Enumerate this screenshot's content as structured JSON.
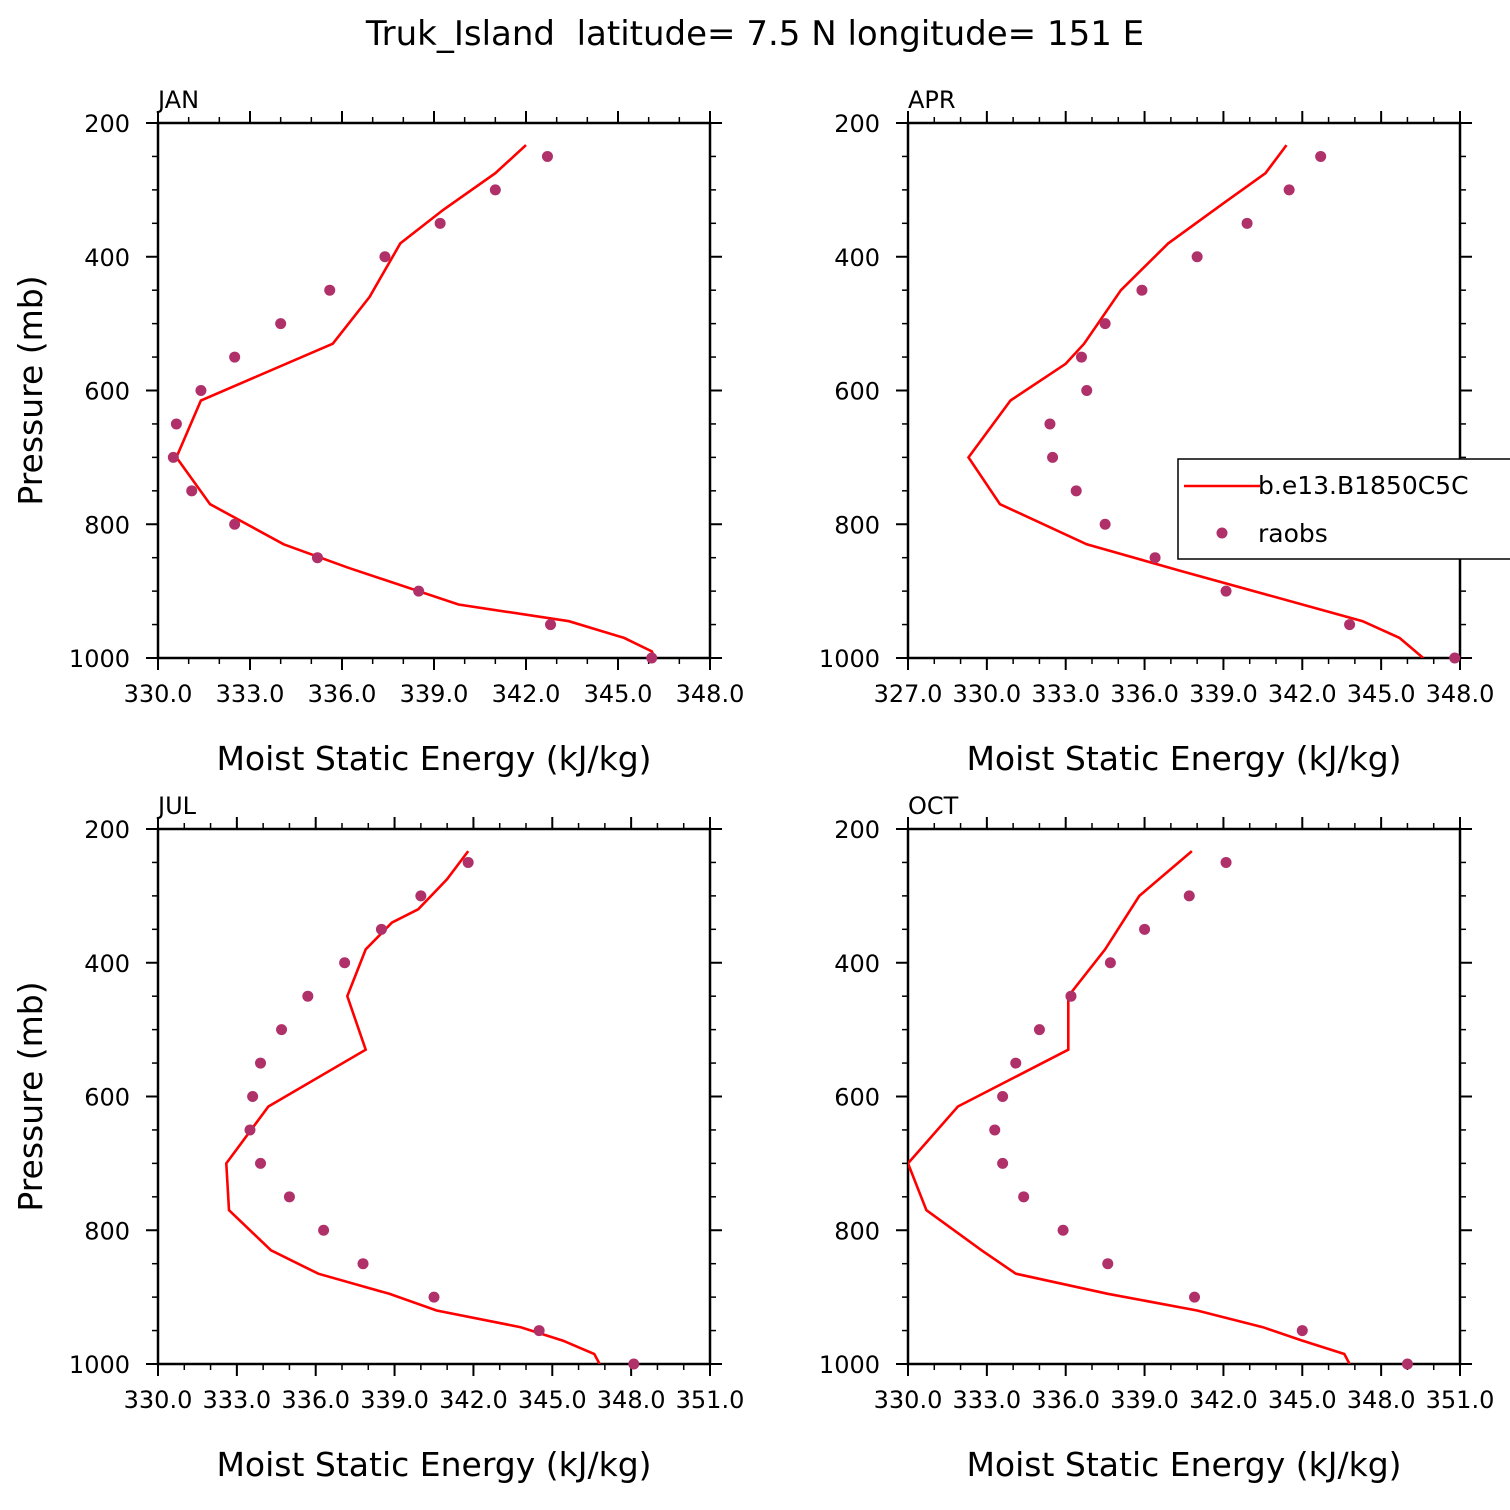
{
  "figure_title": "Truk_Island  latitude= 7.5 N longitude= 151 E",
  "colors": {
    "model_line": "#ff0000",
    "obs_marker": "#b0306a",
    "axes": "#000000",
    "background": "#ffffff"
  },
  "legend": {
    "model_label": "b.e13.B1850C5C",
    "obs_label": "raobs"
  },
  "chart_data": [
    {
      "type": "line",
      "panel_label": "JAN",
      "xlabel": "Moist Static Energy (kJ/kg)",
      "ylabel": "Pressure (mb)",
      "xlim": [
        330.0,
        348.0
      ],
      "xticks": [
        330.0,
        333.0,
        336.0,
        339.0,
        342.0,
        345.0,
        348.0
      ],
      "x_tick_labels": [
        "330.0",
        "333.0",
        "336.0",
        "339.0",
        "342.0",
        "345.0",
        "348.0"
      ],
      "ylim": [
        1000,
        200
      ],
      "yticks": [
        200,
        400,
        600,
        800,
        1000
      ],
      "y_tick_labels": [
        "200",
        "400",
        "600",
        "800",
        "1000"
      ],
      "grid": false,
      "legend_visible": false,
      "series": [
        {
          "name": "b.e13.B1850C5C",
          "kind": "line",
          "x": [
            342.0,
            341.0,
            339.3,
            337.9,
            336.9,
            335.7,
            331.4,
            330.6,
            331.7,
            334.1,
            336.2,
            339.8,
            343.4,
            345.2,
            346.1,
            346.2
          ],
          "y": [
            233,
            275,
            330,
            380,
            460,
            530,
            615,
            700,
            770,
            830,
            865,
            920,
            945,
            970,
            990,
            1000
          ]
        },
        {
          "name": "raobs",
          "kind": "scatter",
          "x": [
            342.7,
            341.0,
            339.2,
            337.4,
            335.6,
            334.0,
            332.5,
            331.4,
            330.6,
            330.5,
            331.1,
            332.5,
            335.2,
            338.5,
            342.8,
            346.1
          ],
          "y": [
            250,
            300,
            350,
            400,
            450,
            500,
            550,
            600,
            650,
            700,
            750,
            800,
            850,
            900,
            950,
            1000
          ]
        }
      ]
    },
    {
      "type": "line",
      "panel_label": "APR",
      "xlabel": "Moist Static Energy (kJ/kg)",
      "ylabel": "",
      "xlim": [
        327.0,
        348.0
      ],
      "xticks": [
        327.0,
        330.0,
        333.0,
        336.0,
        339.0,
        342.0,
        345.0,
        348.0
      ],
      "x_tick_labels": [
        "327.0",
        "330.0",
        "333.0",
        "336.0",
        "339.0",
        "342.0",
        "345.0",
        "348.0"
      ],
      "ylim": [
        1000,
        200
      ],
      "yticks": [
        200,
        400,
        600,
        800,
        1000
      ],
      "y_tick_labels": [
        "200",
        "400",
        "600",
        "800",
        "1000"
      ],
      "grid": false,
      "legend_visible": true,
      "legend_position": "right",
      "series": [
        {
          "name": "b.e13.B1850C5C",
          "kind": "line",
          "x": [
            341.4,
            340.6,
            339.0,
            336.9,
            335.1,
            333.7,
            333.0,
            330.9,
            329.3,
            330.5,
            333.8,
            337.4,
            342.0,
            344.3,
            345.7,
            346.3,
            346.6
          ],
          "y": [
            233,
            275,
            320,
            380,
            450,
            530,
            560,
            615,
            700,
            770,
            830,
            870,
            920,
            945,
            970,
            990,
            1000
          ]
        },
        {
          "name": "raobs",
          "kind": "scatter",
          "x": [
            342.7,
            341.5,
            339.9,
            338.0,
            335.9,
            334.5,
            333.6,
            333.8,
            332.4,
            332.5,
            333.4,
            334.5,
            336.4,
            339.1,
            343.8,
            347.8
          ],
          "y": [
            250,
            300,
            350,
            400,
            450,
            500,
            550,
            600,
            650,
            700,
            750,
            800,
            850,
            900,
            950,
            1000
          ]
        }
      ]
    },
    {
      "type": "line",
      "panel_label": "JUL",
      "xlabel": "Moist Static Energy (kJ/kg)",
      "ylabel": "Pressure (mb)",
      "xlim": [
        330.0,
        351.0
      ],
      "xticks": [
        330.0,
        333.0,
        336.0,
        339.0,
        342.0,
        345.0,
        348.0,
        351.0
      ],
      "x_tick_labels": [
        "330.0",
        "333.0",
        "336.0",
        "339.0",
        "342.0",
        "345.0",
        "348.0",
        "351.0"
      ],
      "ylim": [
        1000,
        200
      ],
      "yticks": [
        200,
        400,
        600,
        800,
        1000
      ],
      "y_tick_labels": [
        "200",
        "400",
        "600",
        "800",
        "1000"
      ],
      "grid": false,
      "legend_visible": false,
      "series": [
        {
          "name": "b.e13.B1850C5C",
          "kind": "line",
          "x": [
            341.8,
            341.0,
            339.9,
            338.9,
            337.9,
            337.2,
            337.9,
            334.2,
            332.6,
            332.7,
            334.3,
            336.1,
            338.8,
            340.6,
            343.8,
            345.4,
            346.6,
            346.8
          ],
          "y": [
            233,
            275,
            320,
            340,
            380,
            450,
            530,
            615,
            700,
            770,
            830,
            865,
            895,
            920,
            945,
            965,
            985,
            1000
          ]
        },
        {
          "name": "raobs",
          "kind": "scatter",
          "x": [
            341.8,
            340.0,
            338.5,
            337.1,
            335.7,
            334.7,
            333.9,
            333.6,
            333.5,
            333.9,
            335.0,
            336.3,
            337.8,
            340.5,
            344.5,
            348.1
          ],
          "y": [
            250,
            300,
            350,
            400,
            450,
            500,
            550,
            600,
            650,
            700,
            750,
            800,
            850,
            900,
            950,
            1000
          ]
        }
      ]
    },
    {
      "type": "line",
      "panel_label": "OCT",
      "xlabel": "Moist Static Energy (kJ/kg)",
      "ylabel": "",
      "xlim": [
        330.0,
        351.0
      ],
      "xticks": [
        330.0,
        333.0,
        336.0,
        339.0,
        342.0,
        345.0,
        348.0,
        351.0
      ],
      "x_tick_labels": [
        "330.0",
        "333.0",
        "336.0",
        "339.0",
        "342.0",
        "345.0",
        "348.0",
        "351.0"
      ],
      "ylim": [
        1000,
        200
      ],
      "yticks": [
        200,
        400,
        600,
        800,
        1000
      ],
      "y_tick_labels": [
        "200",
        "400",
        "600",
        "800",
        "1000"
      ],
      "grid": false,
      "legend_visible": false,
      "series": [
        {
          "name": "b.e13.B1850C5C",
          "kind": "line",
          "x": [
            340.8,
            338.8,
            337.5,
            336.1,
            336.1,
            336.1,
            331.9,
            330.0,
            330.7,
            332.8,
            334.1,
            337.6,
            341.0,
            343.5,
            345.0,
            346.6,
            346.8
          ],
          "y": [
            233,
            300,
            380,
            450,
            450,
            530,
            615,
            700,
            770,
            830,
            865,
            895,
            920,
            945,
            965,
            985,
            1000
          ]
        },
        {
          "name": "raobs",
          "kind": "scatter",
          "x": [
            342.1,
            340.7,
            339.0,
            337.7,
            336.2,
            335.0,
            334.1,
            333.6,
            333.3,
            333.6,
            334.4,
            335.9,
            337.6,
            340.9,
            345.0,
            349.0
          ],
          "y": [
            250,
            300,
            350,
            400,
            450,
            500,
            550,
            600,
            650,
            700,
            750,
            800,
            850,
            900,
            950,
            1000
          ]
        }
      ]
    }
  ]
}
